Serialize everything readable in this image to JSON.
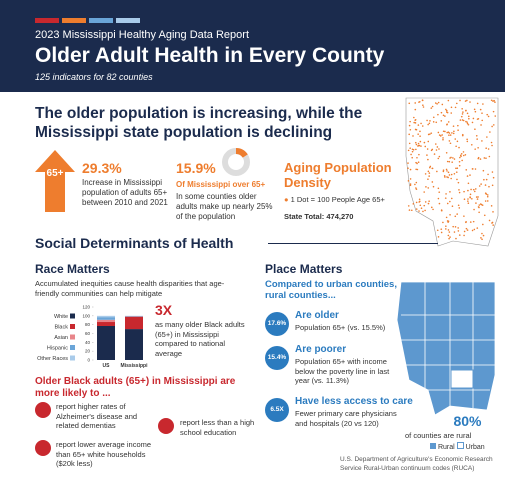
{
  "header": {
    "report": "2023 Mississippi Healthy Aging Data Report",
    "title": "Older Adult Health in Every County",
    "subtitle": "125 indicators for 82 counties"
  },
  "intro": {
    "heading": "The older population is increasing, while the Mississippi state population is declining",
    "arrow_label": "65+",
    "stat1": {
      "value_label": "29.3%",
      "text": "Increase in Mississippi population of adults 65+ between 2010 and 2021"
    },
    "stat2": {
      "value": 15.9,
      "value_label": "15.9%",
      "label": "Of Mississippi over 65+",
      "text": "In some counties older adults make up nearly 25% of the population"
    },
    "density": {
      "title": "Aging Population Density",
      "legend": "1 Dot = 100 People Age 65+",
      "total": "State Total: 474,270"
    }
  },
  "sdoh": {
    "heading": "Social Determinants of Health"
  },
  "race": {
    "heading": "Race Matters",
    "text": "Accumulated inequities cause health disparities that age-friendly communities can help mitigate",
    "stat": "3X",
    "stat_text": "as many older Black adults (65+) in Mississippi compared to national average",
    "subheading": "Older Black adults (65+) in Mississippi are more likely to ...",
    "items": [
      "report higher rates of Alzheimer's disease and related dementias",
      "report lower average income than 65+ white households ($20k less)",
      "report less than a high school education"
    ]
  },
  "chart_data": {
    "type": "stacked-bar",
    "categories": [
      "US",
      "Mississippi"
    ],
    "ylim": [
      0,
      120
    ],
    "yticks": [
      0,
      20,
      40,
      60,
      80,
      100,
      120
    ],
    "series": [
      {
        "name": "White",
        "color": "#1b2b4d",
        "values": [
          77,
          70
        ]
      },
      {
        "name": "Black",
        "color": "#c8282e",
        "values": [
          9,
          28
        ]
      },
      {
        "name": "Asian",
        "color": "#e8858a",
        "values": [
          5,
          0.5
        ]
      },
      {
        "name": "Hispanic",
        "color": "#6aa5d8",
        "values": [
          6,
          1
        ]
      },
      {
        "name": "Other Races",
        "color": "#a9cbea",
        "values": [
          3,
          0.5
        ]
      }
    ]
  },
  "place": {
    "heading": "Place Matters",
    "subheading": "Compared to urban counties, rural counties...",
    "items": [
      {
        "badge": "17.6%",
        "title": "Are older",
        "text": "Population 65+ (vs. 15.5%)"
      },
      {
        "badge": "15.4%",
        "title": "Are poorer",
        "text": "Population 65+ with income below the poverty line in last year (vs. 11.3%)"
      },
      {
        "badge": "6.5X",
        "title": "Have less access to care",
        "text": "Fewer primary care physicians and hospitals (20 vs 120)"
      }
    ],
    "rural_stat": "80%",
    "rural_text": "of counties are rural",
    "legend": [
      "Rural",
      "Urban"
    ]
  },
  "footer": "U.S. Department of Agriculture's Economic Research Service Rural-Urban continuum codes (RUCA)"
}
